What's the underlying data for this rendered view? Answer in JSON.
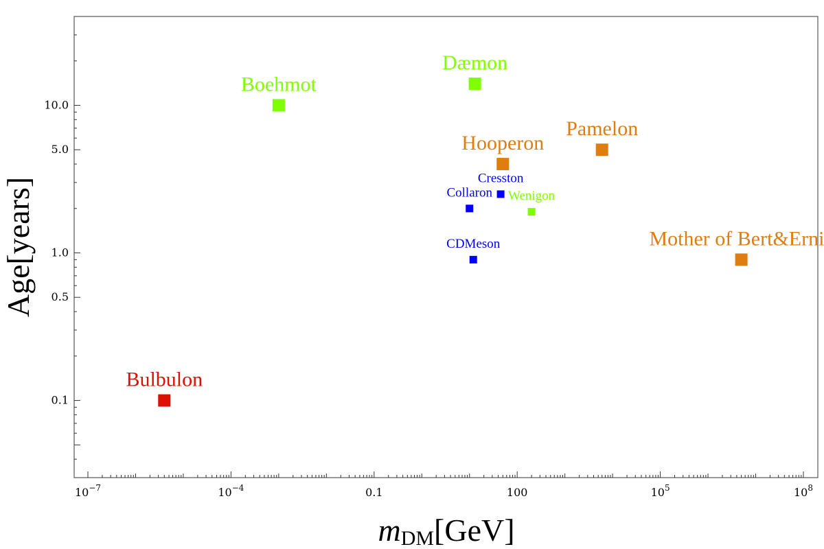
{
  "chart_data": {
    "type": "scatter",
    "title": "",
    "xlabel_main": "m",
    "xlabel_sub": "DM",
    "xlabel_unit": "[GeV]",
    "ylabel": "Age[years]",
    "xscale": "log",
    "yscale": "log",
    "xlim": [
      1e-07,
      100000000.0
    ],
    "ylim": [
      0.03,
      40
    ],
    "x_ticks": [
      {
        "value": 1e-07,
        "base": "10",
        "exp": "−7"
      },
      {
        "value": 0.0001,
        "base": "10",
        "exp": "−4"
      },
      {
        "value": 0.1,
        "base": "0.1",
        "exp": ""
      },
      {
        "value": 100,
        "base": "100",
        "exp": ""
      },
      {
        "value": 100000.0,
        "base": "10",
        "exp": "5"
      },
      {
        "value": 100000000.0,
        "base": "10",
        "exp": "8"
      }
    ],
    "y_ticks": [
      {
        "value": 0.1,
        "label": "0.1"
      },
      {
        "value": 0.5,
        "label": "0.5"
      },
      {
        "value": 1.0,
        "label": "1.0"
      },
      {
        "value": 5.0,
        "label": "5.0"
      },
      {
        "value": 10.0,
        "label": "10.0"
      }
    ],
    "colors": {
      "green": "#80ff00",
      "orange": "#e07d10",
      "blue": "#0000ff",
      "red": "#dd1100"
    },
    "points": [
      {
        "name": "Boehmot",
        "x": 0.001,
        "y": 10.0,
        "color": "green",
        "size": "large",
        "label_pos": "above"
      },
      {
        "name": "Dæmon",
        "x": 13,
        "y": 14.0,
        "color": "green",
        "size": "large",
        "label_pos": "above"
      },
      {
        "name": "Hooperon",
        "x": 50,
        "y": 4.0,
        "color": "orange",
        "size": "large",
        "label_pos": "above"
      },
      {
        "name": "Pamelon",
        "x": 6000,
        "y": 5.0,
        "color": "orange",
        "size": "large",
        "label_pos": "above"
      },
      {
        "name": "Cresston",
        "x": 45,
        "y": 2.5,
        "color": "blue",
        "size": "small",
        "label_pos": "above"
      },
      {
        "name": "Collaron",
        "x": 10,
        "y": 2.0,
        "color": "blue",
        "size": "small",
        "label_pos": "above"
      },
      {
        "name": "Wenigon",
        "x": 200,
        "y": 1.9,
        "color": "green",
        "size": "small",
        "label_pos": "above"
      },
      {
        "name": "CDMeson",
        "x": 12,
        "y": 0.9,
        "color": "blue",
        "size": "small",
        "label_pos": "above"
      },
      {
        "name": "Mother of Bert&Ernie",
        "x": 5000000,
        "y": 0.9,
        "color": "orange",
        "size": "large",
        "label_pos": "above"
      },
      {
        "name": "Bulbulon",
        "x": 4e-06,
        "y": 0.1,
        "color": "red",
        "size": "large",
        "label_pos": "above"
      }
    ]
  }
}
